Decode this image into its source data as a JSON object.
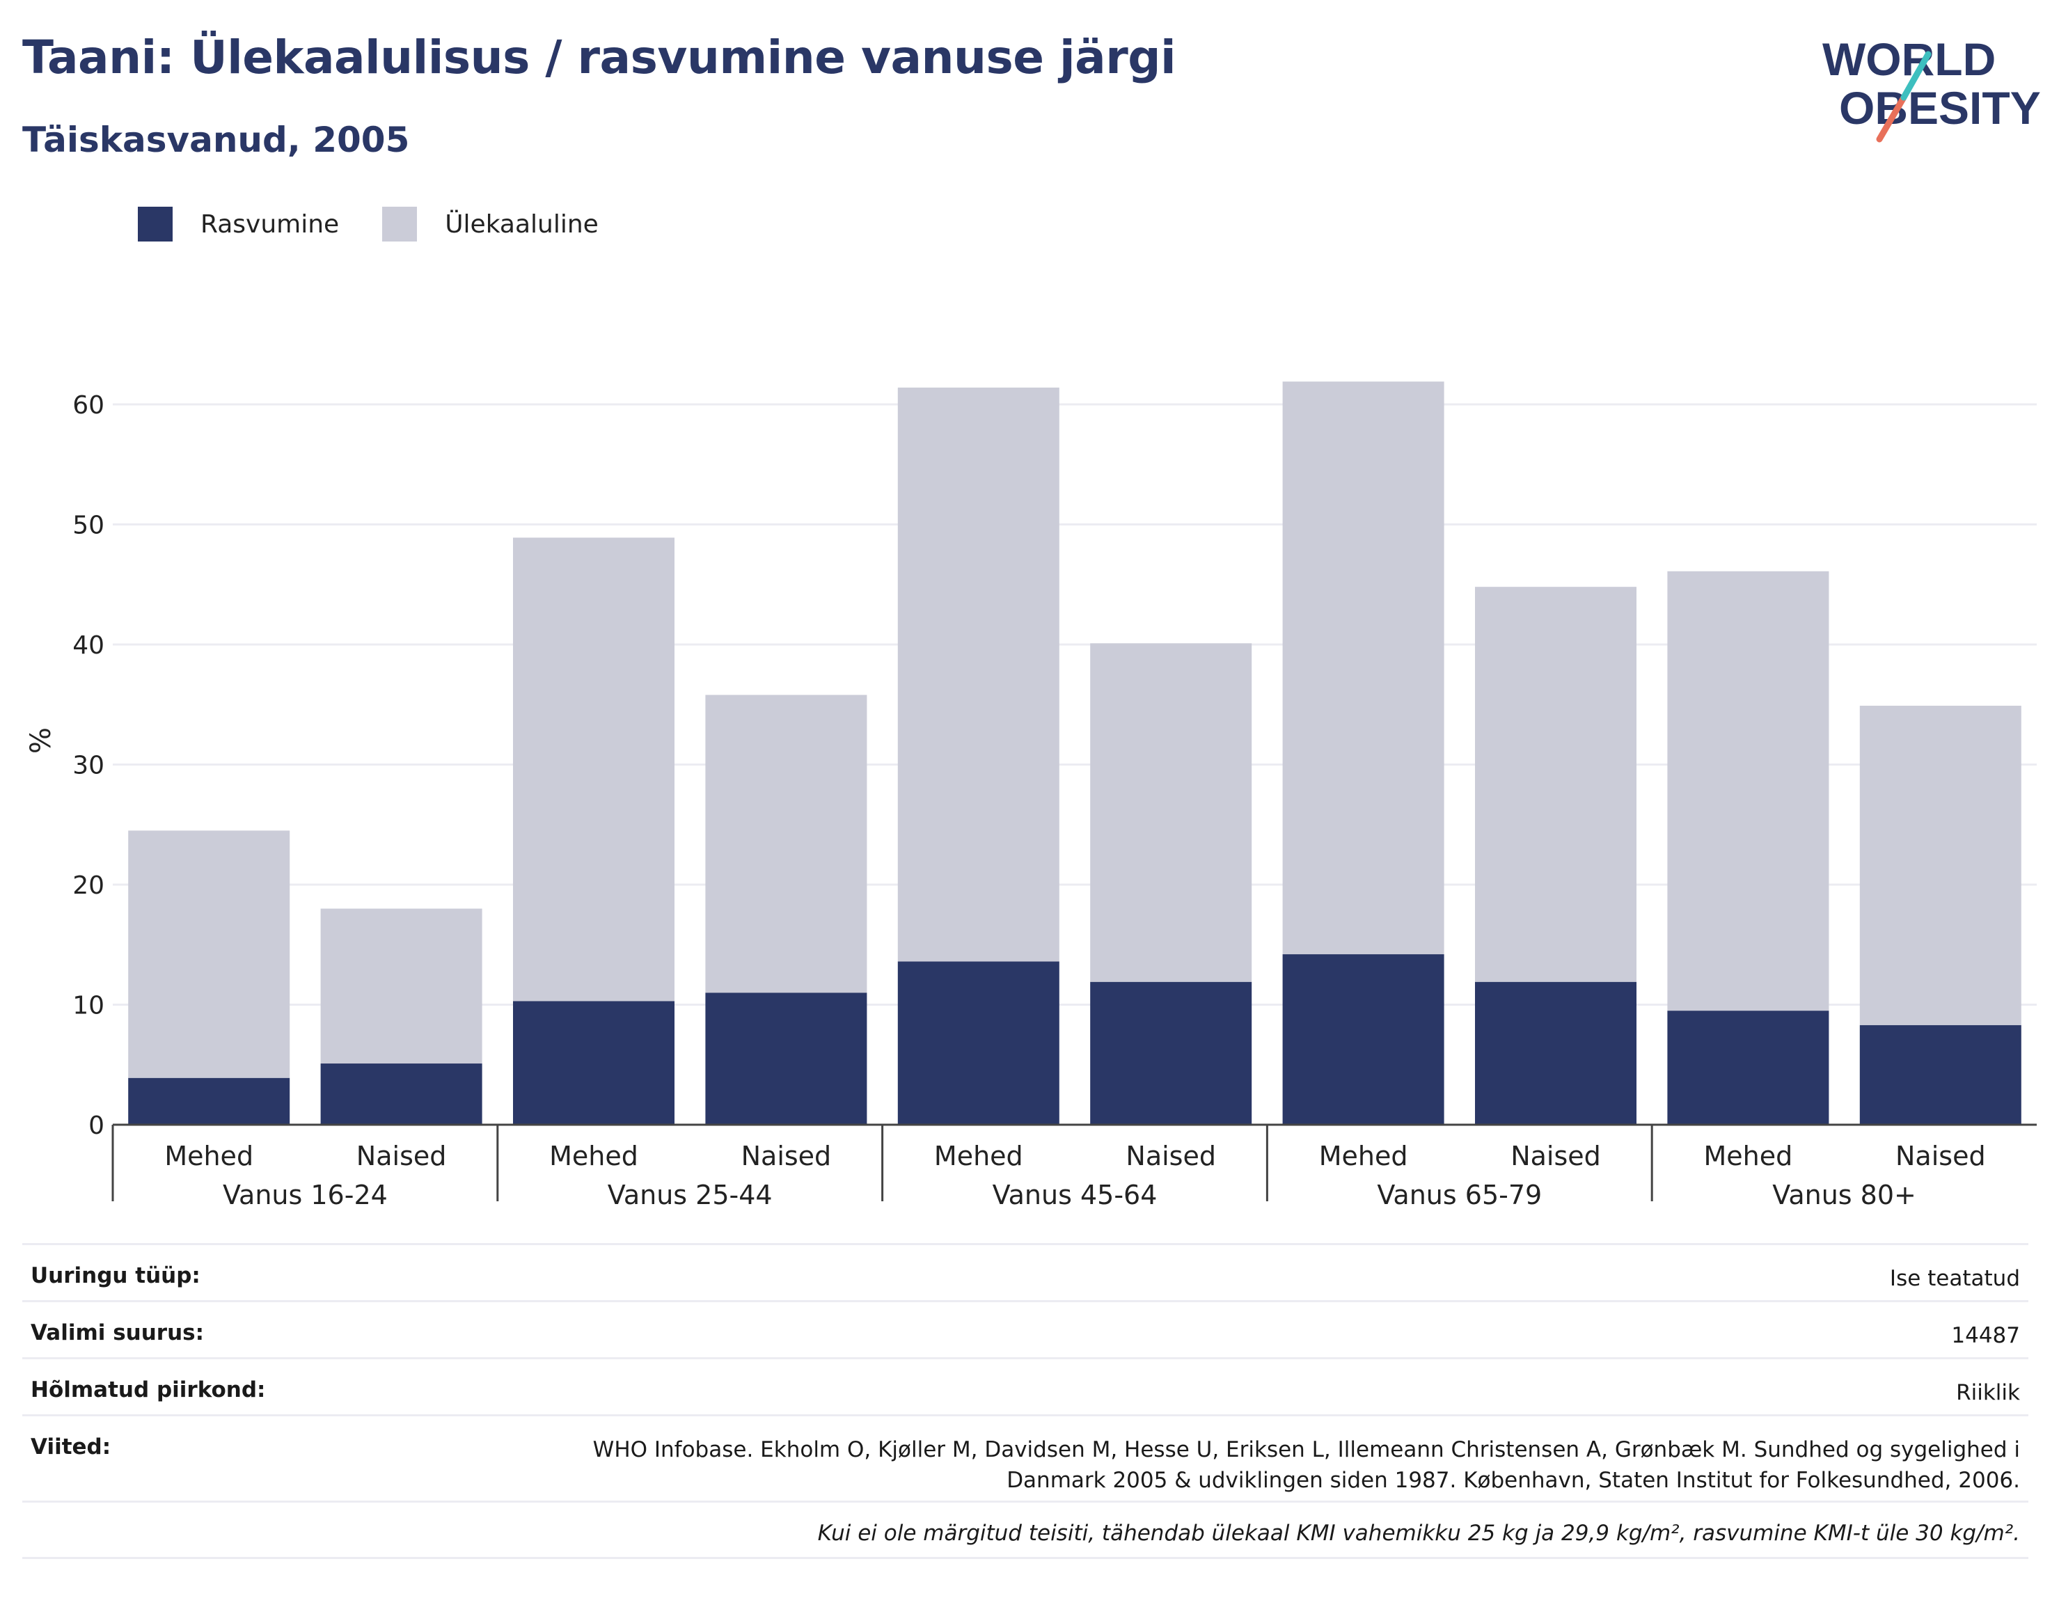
{
  "header": {
    "title": "Taani: Ülekaalulisus / rasvumine vanuse järgi",
    "subtitle": "Täiskasvanud, 2005",
    "logo_line1": "WORLD",
    "logo_line2": "OBESITY"
  },
  "colors": {
    "obesity": "#2a3766",
    "overweight": "#cbccd8",
    "text_accent": "#2a3766",
    "logo_teal": "#3dbfbf",
    "logo_coral": "#e8705a"
  },
  "chart_data": {
    "type": "bar",
    "stacked": true,
    "ylabel": "%",
    "ylim": [
      0,
      65
    ],
    "yticks": [
      0,
      10,
      20,
      30,
      40,
      50,
      60
    ],
    "grid": true,
    "legend_position": "top-left",
    "groups": [
      {
        "label": "Vanus 16-24",
        "categories": [
          "Mehed",
          "Naised"
        ]
      },
      {
        "label": "Vanus 25-44",
        "categories": [
          "Mehed",
          "Naised"
        ]
      },
      {
        "label": "Vanus 45-64",
        "categories": [
          "Mehed",
          "Naised"
        ]
      },
      {
        "label": "Vanus 65-79",
        "categories": [
          "Mehed",
          "Naised"
        ]
      },
      {
        "label": "Vanus 80+",
        "categories": [
          "Mehed",
          "Naised"
        ]
      }
    ],
    "series": [
      {
        "name": "Rasvumine",
        "values": [
          3.9,
          5.1,
          10.3,
          11.0,
          13.6,
          11.9,
          14.2,
          11.9,
          9.5,
          8.3
        ]
      },
      {
        "name": "Ülekaaluline",
        "values": [
          20.6,
          12.9,
          38.6,
          24.8,
          47.8,
          28.2,
          47.7,
          32.9,
          36.6,
          26.6
        ]
      }
    ]
  },
  "info": {
    "rows": [
      {
        "key": "Uuringu tüüp:",
        "value": "Ise teatatud"
      },
      {
        "key": "Valimi suurus:",
        "value": "14487"
      },
      {
        "key": "Hõlmatud piirkond:",
        "value": "Riiklik"
      }
    ],
    "references_key": "Viited:",
    "references_line1": "WHO Infobase. Ekholm O, Kjøller M, Davidsen M, Hesse U, Eriksen L, Illemeann Christensen A, Grønbæk M. Sundhed og sygelighed i",
    "references_line2": "Danmark 2005 & udviklingen siden 1987. København, Staten Institut for Folkesundhed, 2006.",
    "note": "Kui ei ole märgitud teisiti, tähendab ülekaal KMI vahemikku 25 kg ja 29,9 kg/m², rasvumine KMI-t üle 30 kg/m²."
  }
}
